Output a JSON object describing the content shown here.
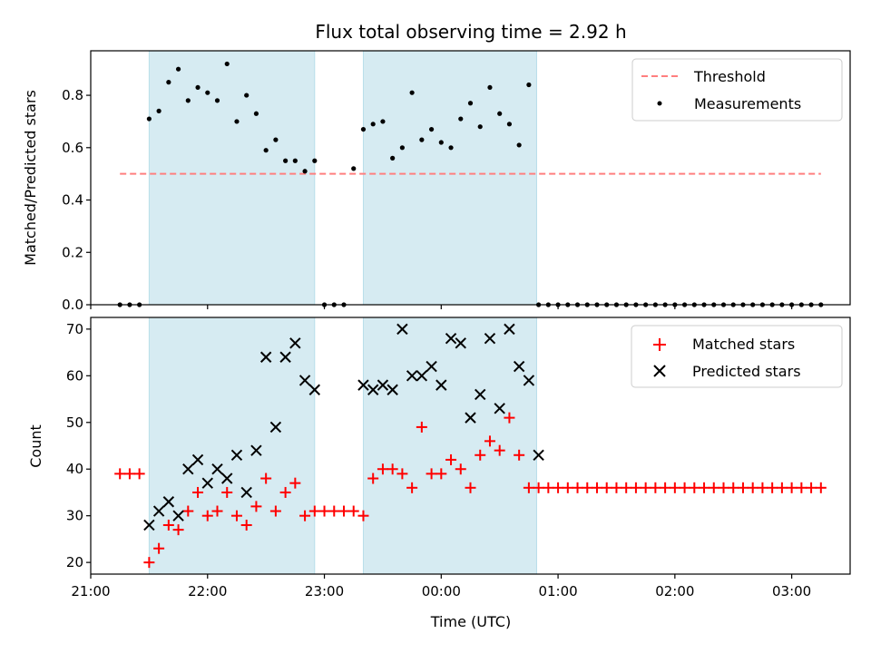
{
  "chart_data": [
    {
      "type": "scatter",
      "panel": "top",
      "title": "Flux total observing time = 2.92 h",
      "ylabel": "Matched/Predicted stars",
      "xlabel": "",
      "xlim": [
        "21:00",
        "03:30"
      ],
      "ylim": [
        0,
        0.97
      ],
      "y_ticks": [
        0.0,
        0.2,
        0.4,
        0.6,
        0.8
      ],
      "y_tick_labels": [
        "0.0",
        "0.2",
        "0.4",
        "0.6",
        "0.8"
      ],
      "legend": {
        "position": "top-right",
        "entries": [
          "Threshold",
          "Measurements"
        ]
      },
      "observing_windows": [
        [
          "21:30",
          "22:55"
        ],
        [
          "23:20",
          "00:49"
        ]
      ],
      "series": [
        {
          "name": "Threshold",
          "style": "dashed-line",
          "color": "#ff7f7f",
          "x": [
            "21:15",
            "03:15"
          ],
          "y": [
            0.5,
            0.5
          ]
        },
        {
          "name": "Measurements",
          "style": "dot",
          "color": "#000000",
          "x": [
            "21:15",
            "21:20",
            "21:25",
            "21:30",
            "21:35",
            "21:40",
            "21:45",
            "21:50",
            "21:55",
            "22:00",
            "22:05",
            "22:10",
            "22:15",
            "22:20",
            "22:25",
            "22:30",
            "22:35",
            "22:40",
            "22:45",
            "22:50",
            "22:55",
            "23:00",
            "23:05",
            "23:10",
            "23:15",
            "23:20",
            "23:25",
            "23:30",
            "23:35",
            "23:40",
            "23:45",
            "23:50",
            "23:55",
            "00:00",
            "00:05",
            "00:10",
            "00:15",
            "00:20",
            "00:25",
            "00:30",
            "00:35",
            "00:40",
            "00:45",
            "00:50",
            "00:55",
            "01:00",
            "01:05",
            "01:10",
            "01:15",
            "01:20",
            "01:25",
            "01:30",
            "01:35",
            "01:40",
            "01:45",
            "01:50",
            "01:55",
            "02:00",
            "02:05",
            "02:10",
            "02:15",
            "02:20",
            "02:25",
            "02:30",
            "02:35",
            "02:40",
            "02:45",
            "02:50",
            "02:55",
            "03:00",
            "03:05",
            "03:10",
            "03:15"
          ],
          "y": [
            0,
            0,
            0,
            0.71,
            0.74,
            0.85,
            0.9,
            0.78,
            0.83,
            0.81,
            0.78,
            0.92,
            0.7,
            0.8,
            0.73,
            0.59,
            0.63,
            0.55,
            0.55,
            0.51,
            0.55,
            0,
            0,
            0,
            0.52,
            0.67,
            0.69,
            0.7,
            0.56,
            0.6,
            0.81,
            0.63,
            0.67,
            0.62,
            0.6,
            0.71,
            0.77,
            0.68,
            0.83,
            0.73,
            0.69,
            0.61,
            0.84,
            0,
            0,
            0,
            0,
            0,
            0,
            0,
            0,
            0,
            0,
            0,
            0,
            0,
            0,
            0,
            0,
            0,
            0,
            0,
            0,
            0,
            0,
            0,
            0,
            0,
            0,
            0,
            0,
            0,
            0
          ]
        }
      ]
    },
    {
      "type": "scatter",
      "panel": "bottom",
      "title": "",
      "ylabel": "Count",
      "xlabel": "Time (UTC)",
      "xlim": [
        "21:00",
        "03:30"
      ],
      "ylim": [
        17.5,
        72.5
      ],
      "x_ticks": [
        "21:00",
        "22:00",
        "23:00",
        "00:00",
        "01:00",
        "02:00",
        "03:00"
      ],
      "y_ticks": [
        20,
        30,
        40,
        50,
        60,
        70
      ],
      "y_tick_labels": [
        "20",
        "30",
        "40",
        "50",
        "60",
        "70"
      ],
      "legend": {
        "position": "top-right",
        "entries": [
          "Matched stars",
          "Predicted stars"
        ]
      },
      "observing_windows": [
        [
          "21:30",
          "22:55"
        ],
        [
          "23:20",
          "00:49"
        ]
      ],
      "series": [
        {
          "name": "Matched stars",
          "marker": "plus",
          "color": "#ff0000",
          "x": [
            "21:15",
            "21:20",
            "21:25",
            "21:30",
            "21:35",
            "21:40",
            "21:45",
            "21:50",
            "21:55",
            "22:00",
            "22:05",
            "22:10",
            "22:15",
            "22:20",
            "22:25",
            "22:30",
            "22:35",
            "22:40",
            "22:45",
            "22:50",
            "22:55",
            "23:00",
            "23:05",
            "23:10",
            "23:15",
            "23:20",
            "23:25",
            "23:30",
            "23:35",
            "23:40",
            "23:45",
            "23:50",
            "23:55",
            "00:00",
            "00:05",
            "00:10",
            "00:15",
            "00:20",
            "00:25",
            "00:30",
            "00:35",
            "00:40",
            "00:45",
            "00:50",
            "00:55",
            "01:00",
            "01:05",
            "01:10",
            "01:15",
            "01:20",
            "01:25",
            "01:30",
            "01:35",
            "01:40",
            "01:45",
            "01:50",
            "01:55",
            "02:00",
            "02:05",
            "02:10",
            "02:15",
            "02:20",
            "02:25",
            "02:30",
            "02:35",
            "02:40",
            "02:45",
            "02:50",
            "02:55",
            "03:00",
            "03:05",
            "03:10",
            "03:15"
          ],
          "y": [
            39,
            39,
            39,
            20,
            23,
            28,
            27,
            31,
            35,
            30,
            31,
            35,
            30,
            28,
            32,
            38,
            31,
            35,
            37,
            30,
            31,
            31,
            31,
            31,
            31,
            30,
            38,
            40,
            40,
            39,
            36,
            49,
            39,
            39,
            42,
            40,
            36,
            43,
            46,
            44,
            51,
            43,
            36,
            36,
            36,
            36,
            36,
            36,
            36,
            36,
            36,
            36,
            36,
            36,
            36,
            36,
            36,
            36,
            36,
            36,
            36,
            36,
            36,
            36,
            36,
            36,
            36,
            36,
            36,
            36,
            36,
            36,
            36
          ]
        },
        {
          "name": "Predicted stars",
          "marker": "x",
          "color": "#000000",
          "x": [
            "21:30",
            "21:35",
            "21:40",
            "21:45",
            "21:50",
            "21:55",
            "22:00",
            "22:05",
            "22:10",
            "22:15",
            "22:20",
            "22:25",
            "22:30",
            "22:35",
            "22:40",
            "22:45",
            "22:50",
            "22:55",
            "23:20",
            "23:25",
            "23:30",
            "23:35",
            "23:40",
            "23:45",
            "23:50",
            "23:55",
            "00:00",
            "00:05",
            "00:10",
            "00:15",
            "00:20",
            "00:25",
            "00:30",
            "00:35",
            "00:40",
            "00:45",
            "00:50"
          ],
          "y": [
            28,
            31,
            33,
            30,
            40,
            42,
            37,
            40,
            38,
            43,
            35,
            44,
            64,
            49,
            64,
            67,
            59,
            57,
            58,
            57,
            58,
            57,
            70,
            60,
            60,
            62,
            58,
            68,
            67,
            51,
            56,
            68,
            53,
            70,
            62,
            59,
            43
          ]
        }
      ]
    }
  ]
}
